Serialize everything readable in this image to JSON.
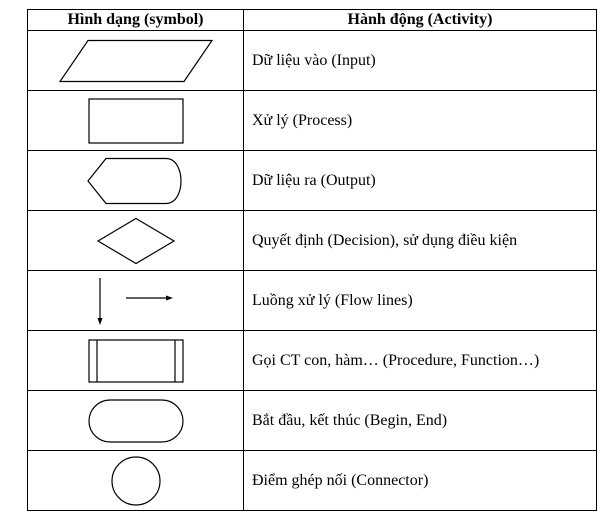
{
  "table": {
    "headers": {
      "symbol": "Hình dạng (symbol)",
      "activity": "Hành động (Activity)"
    },
    "rows": [
      {
        "symbol": "parallelogram-icon",
        "activity": "Dữ liệu vào (Input)"
      },
      {
        "symbol": "rectangle-icon",
        "activity": "Xử lý (Process)"
      },
      {
        "symbol": "display-shape-icon",
        "activity": "Dữ liệu ra (Output)"
      },
      {
        "symbol": "diamond-icon",
        "activity": "Quyết định (Decision), sử dụng điều kiện"
      },
      {
        "symbol": "flow-arrows-icon",
        "activity": "Luồng xử lý (Flow lines)"
      },
      {
        "symbol": "predefined-process-icon",
        "activity": "Gọi CT con, hàm… (Procedure, Function…)"
      },
      {
        "symbol": "terminator-icon",
        "activity": "Bắt đầu, kết thúc (Begin, End)"
      },
      {
        "symbol": "circle-icon",
        "activity": "Điểm ghép nối (Connector)"
      }
    ]
  },
  "colors": {
    "stroke": "#000000",
    "background": "#ffffff"
  }
}
